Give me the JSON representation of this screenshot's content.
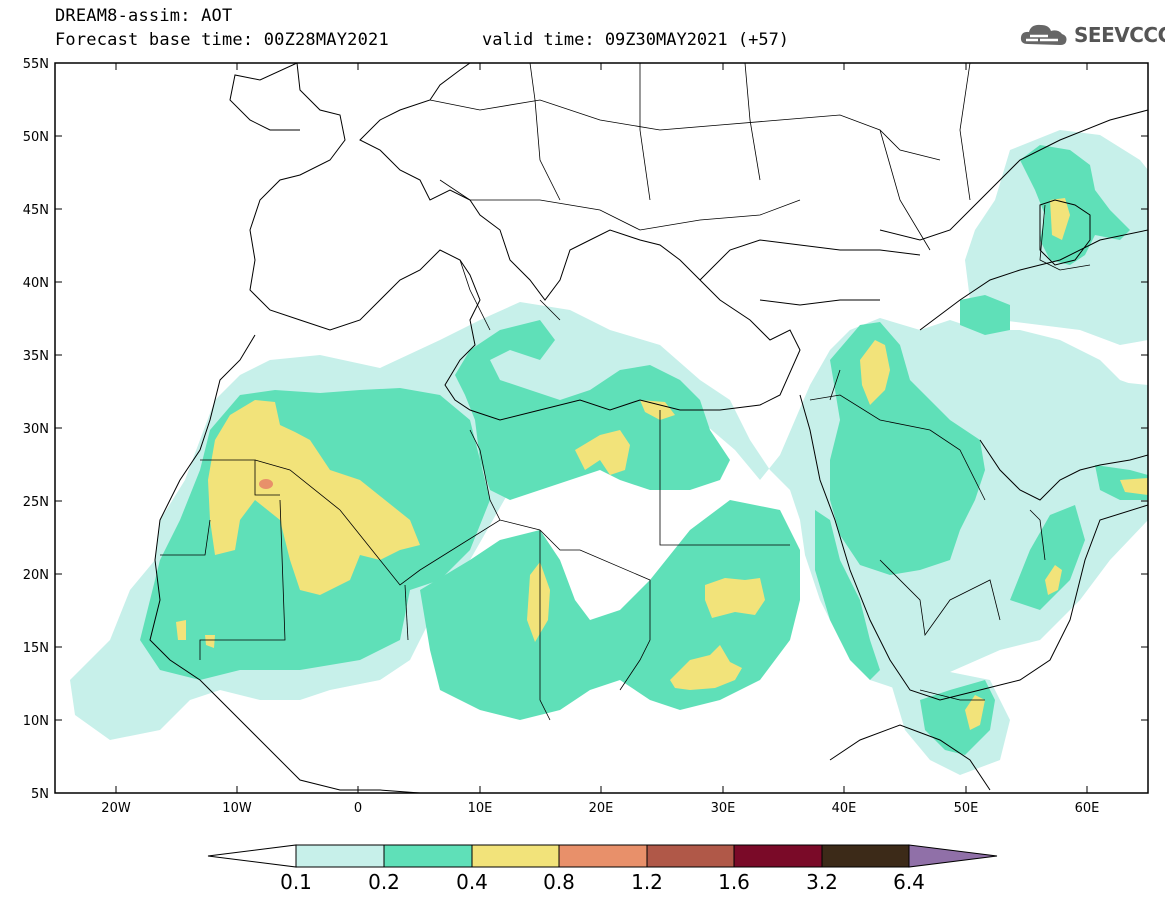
{
  "header": {
    "title": "DREAM8-assim: AOT",
    "base_time": "Forecast base time: 00Z28MAY2021",
    "valid_time": "valid time: 09Z30MAY2021 (+57)",
    "logo_text": "SEEVCCC"
  },
  "axes": {
    "lat_labels": [
      "55N",
      "50N",
      "45N",
      "40N",
      "35N",
      "30N",
      "25N",
      "20N",
      "15N",
      "10N",
      "5N"
    ],
    "lon_labels": [
      "20W",
      "10W",
      "0",
      "10E",
      "20E",
      "30E",
      "40E",
      "50E",
      "60E"
    ],
    "lon_range": [
      -25,
      65
    ],
    "lat_range": [
      5,
      55
    ]
  },
  "legend": {
    "labels": [
      "0.1",
      "0.2",
      "0.4",
      "0.8",
      "1.2",
      "1.6",
      "3.2",
      "6.4"
    ],
    "colors": [
      "#c7f0ea",
      "#5fe0b8",
      "#f2e37a",
      "#e8906a",
      "#b05848",
      "#7a0a28",
      "#3c2a18",
      "#9070a8"
    ]
  }
}
